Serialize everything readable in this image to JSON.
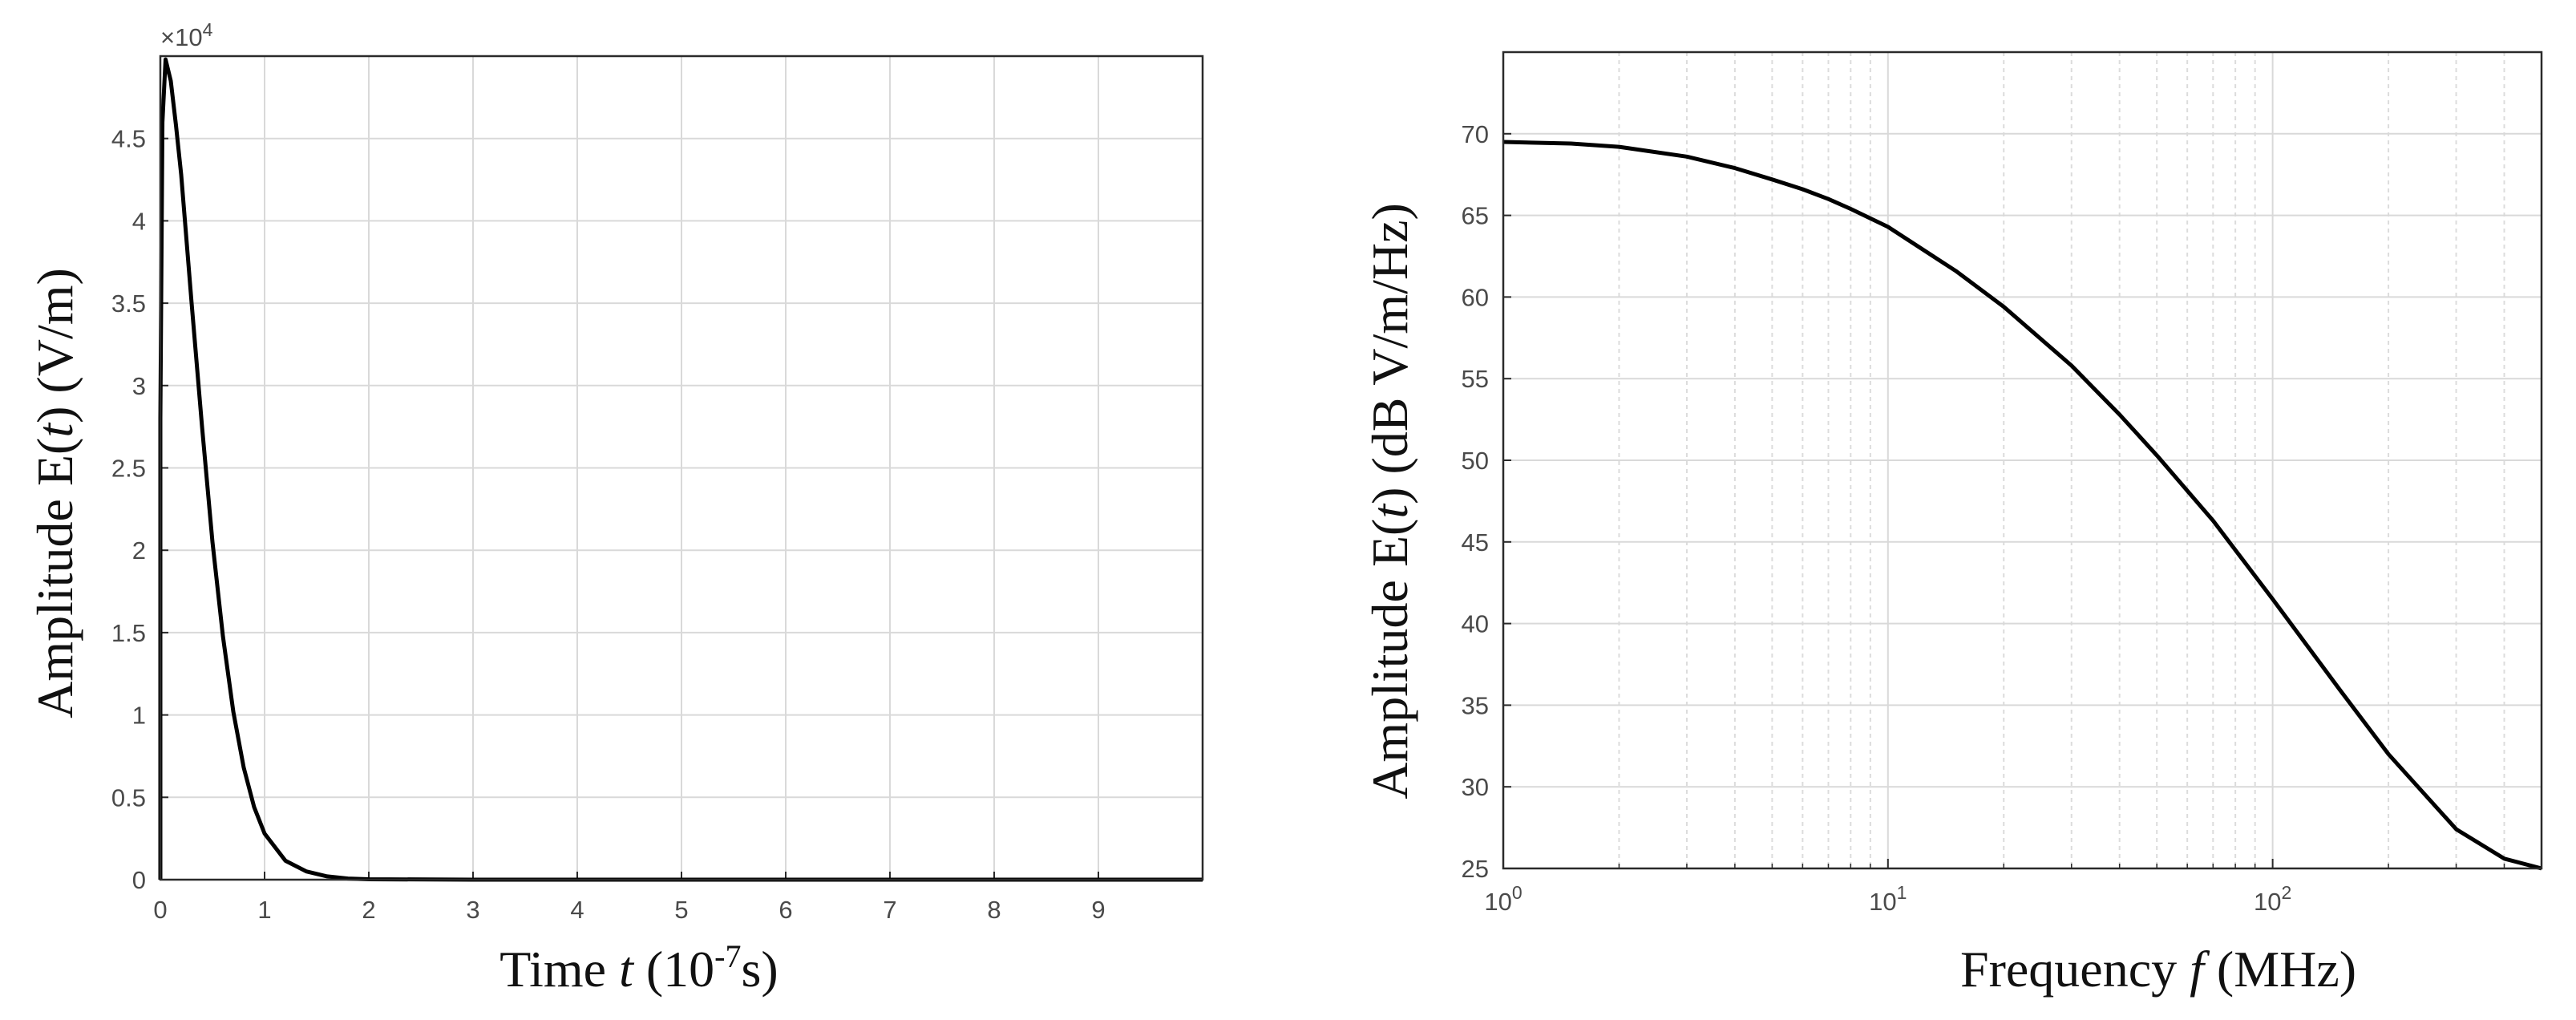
{
  "chart_data": [
    {
      "type": "line",
      "xlabel": {
        "pre": "Time ",
        "var": "t",
        "post": " (10",
        "sup": "-7",
        "post2": "s)"
      },
      "ylabel": {
        "pre": "Amplitude E(",
        "var": "t",
        "post": ") (V/m)"
      },
      "xlim": [
        0,
        10
      ],
      "ylim": [
        0,
        50000
      ],
      "xticks": [
        0,
        1,
        2,
        3,
        4,
        5,
        6,
        7,
        8,
        9
      ],
      "xtick_labels": [
        "0",
        "1",
        "2",
        "3",
        "4",
        "5",
        "6",
        "7",
        "8",
        "9"
      ],
      "yticks": [
        0,
        5000,
        10000,
        15000,
        20000,
        25000,
        30000,
        35000,
        40000,
        45000
      ],
      "ytick_labels": [
        "0",
        "0.5",
        "1",
        "1.5",
        "2",
        "2.5",
        "3",
        "3.5",
        "4",
        "4.5"
      ],
      "y_multiplier": {
        "prefix": "×10",
        "exp": "4"
      },
      "grid": true,
      "series": [
        {
          "x": [
            0,
            0.02,
            0.05,
            0.1,
            0.15,
            0.2,
            0.3,
            0.4,
            0.5,
            0.6,
            0.7,
            0.8,
            0.9,
            1.0,
            1.2,
            1.4,
            1.6,
            1.8,
            2.0,
            3.0,
            5.0,
            7.0,
            10.0
          ],
          "y": [
            28000,
            46000,
            49800,
            48500,
            45800,
            42800,
            35000,
            27500,
            20500,
            14800,
            10200,
            6800,
            4400,
            2800,
            1150,
            500,
            200,
            70,
            25,
            0,
            0,
            0,
            0
          ]
        }
      ]
    },
    {
      "type": "line",
      "xlabel": {
        "pre": "Frequency ",
        "var": "f",
        "post": " (MHz)"
      },
      "ylabel": {
        "pre": "Amplitude E(",
        "var": "t",
        "post": ") (dB V/m/Hz)"
      },
      "xscale": "log",
      "xlim": [
        1,
        500
      ],
      "ylim": [
        25,
        75
      ],
      "xticks": [
        1,
        10,
        100
      ],
      "xtick_labels": [
        {
          "base": "10",
          "exp": "0"
        },
        {
          "base": "10",
          "exp": "1"
        },
        {
          "base": "10",
          "exp": "2"
        }
      ],
      "yticks": [
        25,
        30,
        35,
        40,
        45,
        50,
        55,
        60,
        65,
        70
      ],
      "ytick_labels": [
        "25",
        "30",
        "35",
        "40",
        "45",
        "50",
        "55",
        "60",
        "65",
        "70"
      ],
      "grid": true,
      "series": [
        {
          "x": [
            1,
            1.5,
            2,
            3,
            4,
            5,
            6,
            7,
            8,
            10,
            15,
            20,
            30,
            40,
            50,
            70,
            100,
            150,
            200,
            300,
            400,
            500
          ],
          "y": [
            69.5,
            69.4,
            69.2,
            68.6,
            67.9,
            67.2,
            66.6,
            66.0,
            65.4,
            64.3,
            61.6,
            59.4,
            55.8,
            52.8,
            50.3,
            46.3,
            41.5,
            35.9,
            32.0,
            27.4,
            25.6,
            25.0
          ]
        }
      ]
    }
  ]
}
